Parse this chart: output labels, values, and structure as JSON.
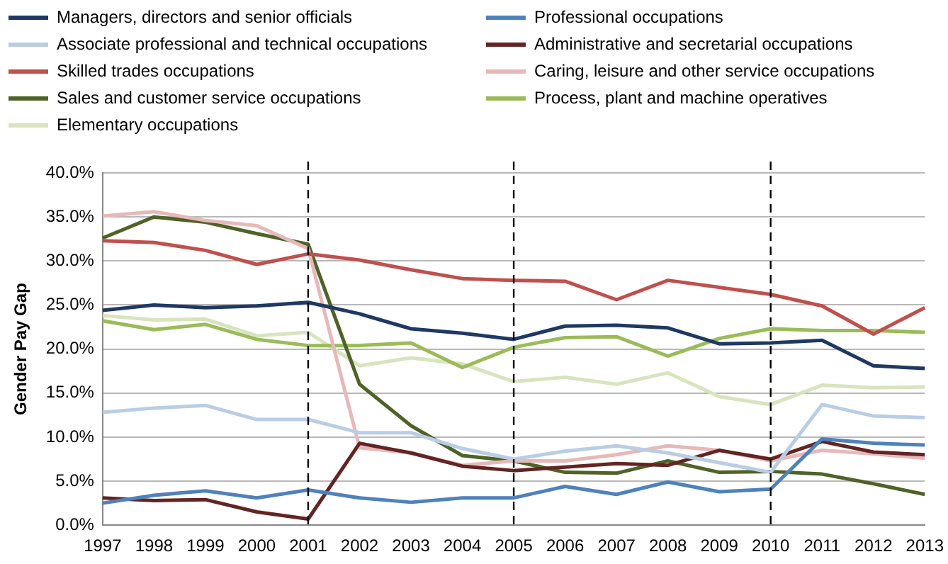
{
  "chart_data": {
    "type": "line",
    "ylabel": "Gender Pay Gap",
    "categories": [
      "1997",
      "1998",
      "1999",
      "2000",
      "2001",
      "2002",
      "2003",
      "2004",
      "2005",
      "2006",
      "2007",
      "2008",
      "2009",
      "2010",
      "2011",
      "2012",
      "2013"
    ],
    "series": [
      {
        "name": "Managers, directors and senior officials",
        "color": "#1f3864",
        "values": [
          24.4,
          25.0,
          24.7,
          24.9,
          25.3,
          24.0,
          22.3,
          21.8,
          21.1,
          22.6,
          22.7,
          22.4,
          20.6,
          20.7,
          21.0,
          18.1,
          17.8
        ]
      },
      {
        "name": "Professional occupations",
        "color": "#4f81bd",
        "values": [
          2.5,
          3.4,
          3.9,
          3.1,
          4.0,
          3.1,
          2.6,
          3.1,
          3.1,
          4.4,
          3.5,
          4.9,
          3.8,
          4.1,
          9.8,
          9.3,
          9.1
        ]
      },
      {
        "name": "Associate professional and technical occupations",
        "color": "#b9cde5",
        "values": [
          12.8,
          13.3,
          13.6,
          12.0,
          12.0,
          10.5,
          10.5,
          8.7,
          7.5,
          8.4,
          9.0,
          8.2,
          7.1,
          6.0,
          13.7,
          12.4,
          12.2
        ]
      },
      {
        "name": "Administrative and secretarial occupations",
        "color": "#632423",
        "values": [
          3.1,
          2.8,
          2.9,
          1.5,
          0.7,
          9.3,
          8.2,
          6.7,
          6.2,
          6.6,
          7.0,
          6.8,
          8.5,
          7.5,
          9.5,
          8.3,
          8.0
        ]
      },
      {
        "name": "Skilled trades occupations",
        "color": "#c0504d",
        "values": [
          32.3,
          32.1,
          31.2,
          29.6,
          30.8,
          30.1,
          29.0,
          28.0,
          27.8,
          27.7,
          25.6,
          27.8,
          27.0,
          26.2,
          24.9,
          21.7,
          24.7
        ]
      },
      {
        "name": "Caring, leisure and other service occupations",
        "color": "#e6b9b8",
        "values": [
          35.1,
          35.6,
          34.6,
          34.0,
          31.4,
          8.8,
          8.2,
          6.8,
          7.3,
          7.3,
          8.0,
          9.0,
          8.5,
          7.3,
          8.5,
          8.1,
          7.6
        ]
      },
      {
        "name": "Sales and customer service occupations",
        "color": "#4f6228",
        "values": [
          32.6,
          35.0,
          34.4,
          33.1,
          31.9,
          16.0,
          11.3,
          7.9,
          7.3,
          6.0,
          5.9,
          7.3,
          6.0,
          6.1,
          5.8,
          4.7,
          3.5
        ]
      },
      {
        "name": "Process, plant and machine operatives",
        "color": "#9bbb59",
        "values": [
          23.2,
          22.2,
          22.8,
          21.1,
          20.4,
          20.4,
          20.7,
          17.9,
          20.2,
          21.3,
          21.4,
          19.2,
          21.2,
          22.3,
          22.1,
          22.1,
          21.9
        ]
      },
      {
        "name": "Elementary occupations",
        "color": "#d7e4bd",
        "values": [
          23.8,
          23.3,
          23.4,
          21.5,
          21.9,
          18.1,
          19.0,
          18.3,
          16.3,
          16.8,
          16.0,
          17.3,
          14.6,
          13.7,
          15.9,
          15.6,
          15.7
        ]
      }
    ],
    "ylim": [
      0,
      40
    ],
    "yticks": [
      {
        "value": 0,
        "label": "0.0%"
      },
      {
        "value": 5,
        "label": "5.0%"
      },
      {
        "value": 10,
        "label": "10.0%"
      },
      {
        "value": 15,
        "label": "15.0%"
      },
      {
        "value": 20,
        "label": "20.0%"
      },
      {
        "value": 25,
        "label": "25.0%"
      },
      {
        "value": 30,
        "label": "30.0%"
      },
      {
        "value": 35,
        "label": "35.0%"
      },
      {
        "value": 40,
        "label": "40.0%"
      }
    ],
    "ref_lines": [
      {
        "axis": "x",
        "value": "2001",
        "color": "#000000",
        "line_style": "dashed"
      },
      {
        "axis": "x",
        "value": "2005",
        "color": "#000000",
        "line_style": "dashed"
      },
      {
        "axis": "x",
        "value": "2010",
        "color": "#000000",
        "line_style": "dashed"
      }
    ],
    "grid": "y",
    "legend": "top",
    "marker": "none",
    "line_style": "solid"
  }
}
